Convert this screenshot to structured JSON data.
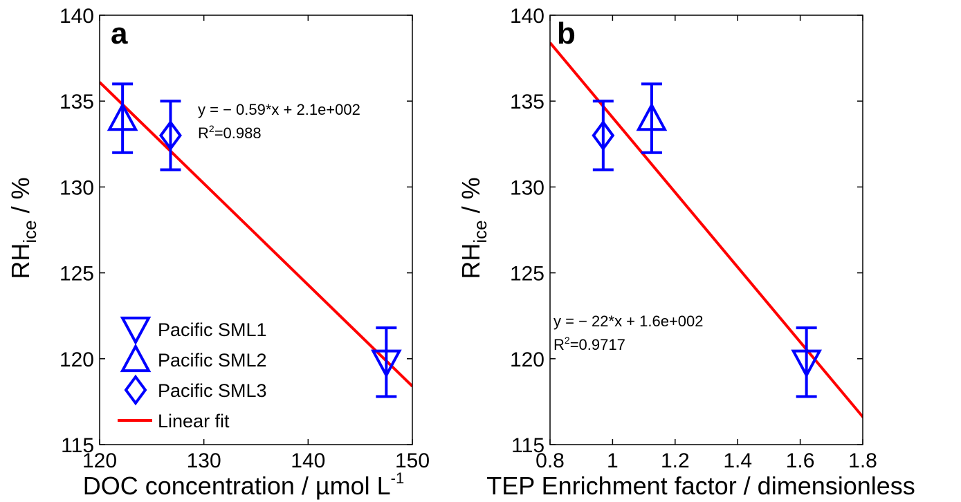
{
  "chart_data": [
    {
      "type": "scatter",
      "panel_label": "a",
      "xlabel": "DOC concentration / µmol L",
      "xlabel_sup": "-1",
      "ylabel_main": "RH",
      "ylabel_sub": "ice",
      "ylabel_rest": " / %",
      "xlim": [
        120,
        150
      ],
      "ylim": [
        115,
        140
      ],
      "xticks": [
        120,
        130,
        140,
        150
      ],
      "yticks": [
        115,
        120,
        125,
        130,
        135,
        140
      ],
      "series": [
        {
          "name": "Pacific SML1",
          "marker": "triangle-down",
          "points": [
            {
              "x": 147.5,
              "y": 119.8,
              "err": 2.0
            }
          ]
        },
        {
          "name": "Pacific SML2",
          "marker": "triangle-up",
          "points": [
            {
              "x": 122.2,
              "y": 134.0,
              "err": 2.0
            }
          ]
        },
        {
          "name": "Pacific SML3",
          "marker": "diamond",
          "points": [
            {
              "x": 126.8,
              "y": 133.0,
              "err": 2.0
            }
          ]
        }
      ],
      "fit": {
        "name": "Linear fit",
        "x": [
          120,
          150
        ],
        "y": [
          136.1,
          118.4
        ]
      },
      "annotation": {
        "eq": "y = − 0.59*x + 2.1e+002",
        "r2_prefix": "R",
        "r2_sup": "2",
        "r2_value": "=0.988"
      },
      "legend": {
        "position": "bottom-left"
      },
      "colors": {
        "marker": "#0000ff",
        "fit": "#ff0000"
      }
    },
    {
      "type": "scatter",
      "panel_label": "b",
      "xlabel": "TEP Enrichment factor / dimensionless",
      "ylabel_main": "RH",
      "ylabel_sub": "ice",
      "ylabel_rest": " / %",
      "xlim": [
        0.8,
        1.8
      ],
      "ylim": [
        115,
        140
      ],
      "xticks": [
        "0.8",
        "1",
        "1.2",
        "1.4",
        "1.6",
        "1.8"
      ],
      "yticks": [
        115,
        120,
        125,
        130,
        135,
        140
      ],
      "series": [
        {
          "name": "Pacific SML1",
          "marker": "triangle-down",
          "points": [
            {
              "x": 1.62,
              "y": 119.8,
              "err": 2.0
            }
          ]
        },
        {
          "name": "Pacific SML2",
          "marker": "triangle-up",
          "points": [
            {
              "x": 1.125,
              "y": 134.0,
              "err": 2.0
            }
          ]
        },
        {
          "name": "Pacific SML3",
          "marker": "diamond",
          "points": [
            {
              "x": 0.97,
              "y": 133.0,
              "err": 2.0
            }
          ]
        }
      ],
      "fit": {
        "x": [
          0.8,
          1.81
        ],
        "y": [
          138.4,
          116.4
        ]
      },
      "annotation": {
        "eq": "y = − 22*x + 1.6e+002",
        "r2_prefix": "R",
        "r2_sup": "2",
        "r2_value": "=0.9717"
      },
      "colors": {
        "marker": "#0000ff",
        "fit": "#ff0000"
      }
    }
  ]
}
